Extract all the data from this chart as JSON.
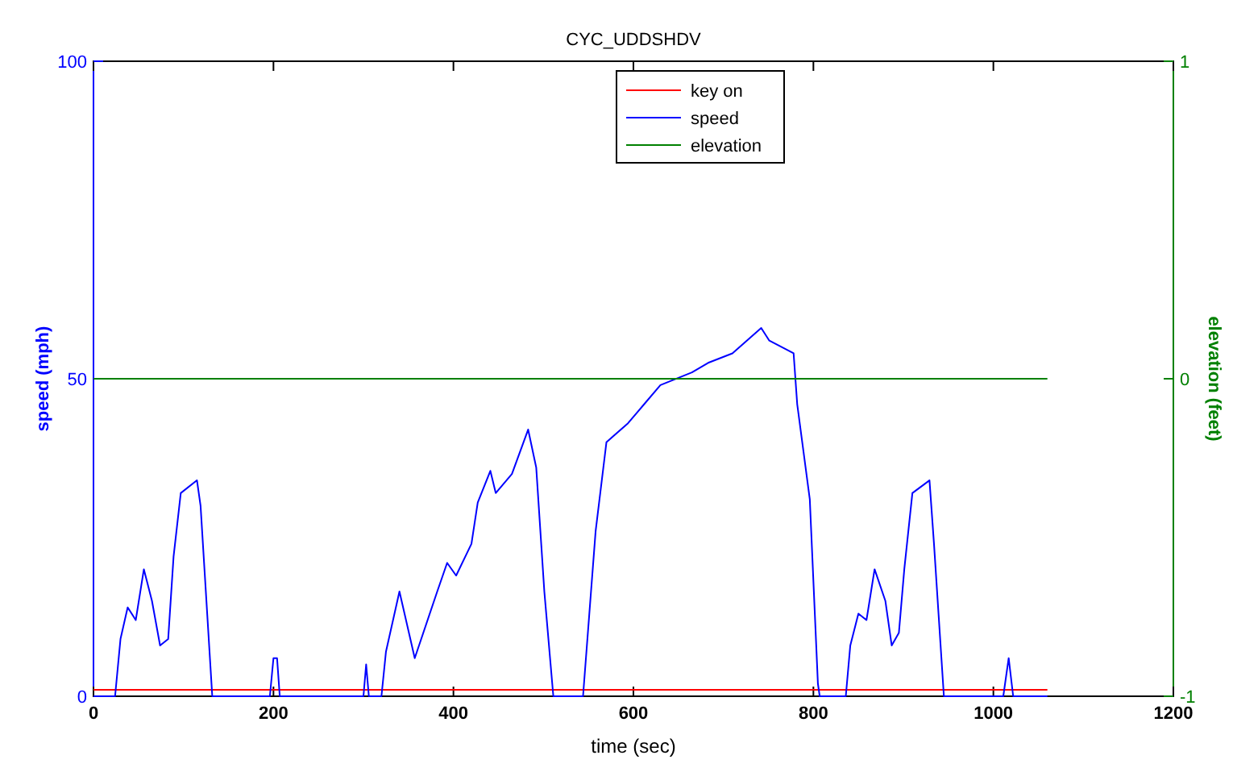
{
  "chart_data": {
    "type": "line",
    "title": "CYC_UDDSHDV",
    "xlabel": "time (sec)",
    "ylabel": "speed (mph)",
    "y2label": "elevation (feet)",
    "xlim": [
      0,
      1200
    ],
    "xticks": [
      0,
      200,
      400,
      600,
      800,
      1000,
      1200
    ],
    "ylim": [
      0,
      100
    ],
    "yticks": [
      0,
      50,
      100
    ],
    "y2lim": [
      -1,
      1
    ],
    "y2ticks": [
      -1,
      0,
      1
    ],
    "legend": "top",
    "grid": false,
    "marker": "none",
    "line_style": "solid",
    "series": [
      {
        "name": "key on",
        "color": "#ff0000",
        "x": [
          0,
          1060
        ],
        "values": [
          1,
          1
        ]
      },
      {
        "name": "speed",
        "color": "#0000ff",
        "x": [
          0,
          24,
          30,
          38,
          47,
          56,
          65,
          74,
          83,
          89,
          97,
          115,
          119,
          132,
          196,
          200,
          204,
          207,
          300,
          303,
          306,
          320,
          325,
          340,
          357,
          382,
          393,
          403,
          420,
          427,
          441,
          447,
          465,
          483,
          492,
          501,
          511,
          544,
          558,
          570,
          594,
          612,
          630,
          665,
          683,
          710,
          742,
          751,
          778,
          782,
          796,
          805,
          807,
          836,
          841,
          850,
          859,
          868,
          880,
          887,
          895,
          901,
          910,
          929,
          934,
          945,
          1011,
          1017,
          1022,
          1060
        ],
        "values": [
          0,
          0,
          9,
          14,
          12,
          20,
          15,
          8,
          9,
          22,
          32,
          34,
          30,
          0,
          0,
          6,
          6,
          0,
          0,
          5,
          0,
          0,
          7,
          16.5,
          6,
          16.5,
          21,
          19,
          24,
          30.5,
          35.5,
          32,
          35,
          42,
          36,
          16.5,
          0,
          0,
          26,
          40,
          43,
          46,
          49,
          51,
          52.5,
          54,
          58,
          56,
          54,
          46,
          31,
          2,
          0,
          0,
          8,
          13,
          12,
          20,
          15,
          8,
          10,
          20,
          32,
          34,
          24,
          0,
          0,
          6,
          0,
          0
        ]
      },
      {
        "name": "elevation",
        "color": "#008000",
        "axis": "y2",
        "x": [
          0,
          1060
        ],
        "values": [
          0,
          0
        ]
      }
    ]
  }
}
